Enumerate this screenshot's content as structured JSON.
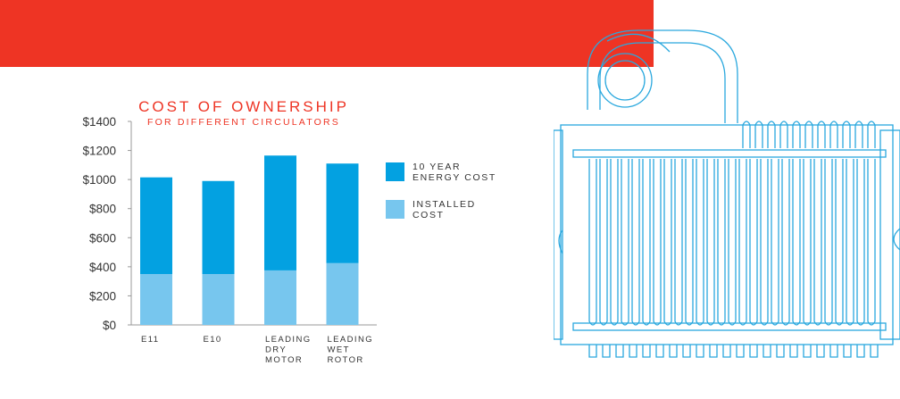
{
  "banner": {
    "color": "#ee3424"
  },
  "chart_data": {
    "type": "bar",
    "stacked": true,
    "title": "COST OF OWNERSHIP",
    "subtitle": "FOR DIFFERENT CIRCULATORS",
    "xlabel": "",
    "ylabel": "",
    "ylim": [
      0,
      1400
    ],
    "yticks": [
      "$0",
      "$200",
      "$400",
      "$600",
      "$800",
      "$1000",
      "$1200",
      "$1400"
    ],
    "ytick_values": [
      0,
      200,
      400,
      600,
      800,
      1000,
      1200,
      1400
    ],
    "categories": [
      "E11",
      "E10",
      "LEADING DRY MOTOR",
      "LEADING WET ROTOR"
    ],
    "series": [
      {
        "name": "INSTALLED COST",
        "color": "#77c6ee",
        "values": [
          350,
          350,
          375,
          425
        ]
      },
      {
        "name": "10 YEAR ENERGY COST",
        "color": "#03a1e1",
        "values": [
          665,
          640,
          790,
          685
        ]
      }
    ],
    "legend": {
      "position": "right",
      "entries": [
        {
          "label": "10 YEAR ENERGY COST",
          "color": "#03a1e1"
        },
        {
          "label": "INSTALLED COST",
          "color": "#77c6ee"
        }
      ]
    },
    "grid": false
  },
  "illustration": {
    "name": "circulator-motor-line-drawing",
    "color": "#2aa8de"
  }
}
